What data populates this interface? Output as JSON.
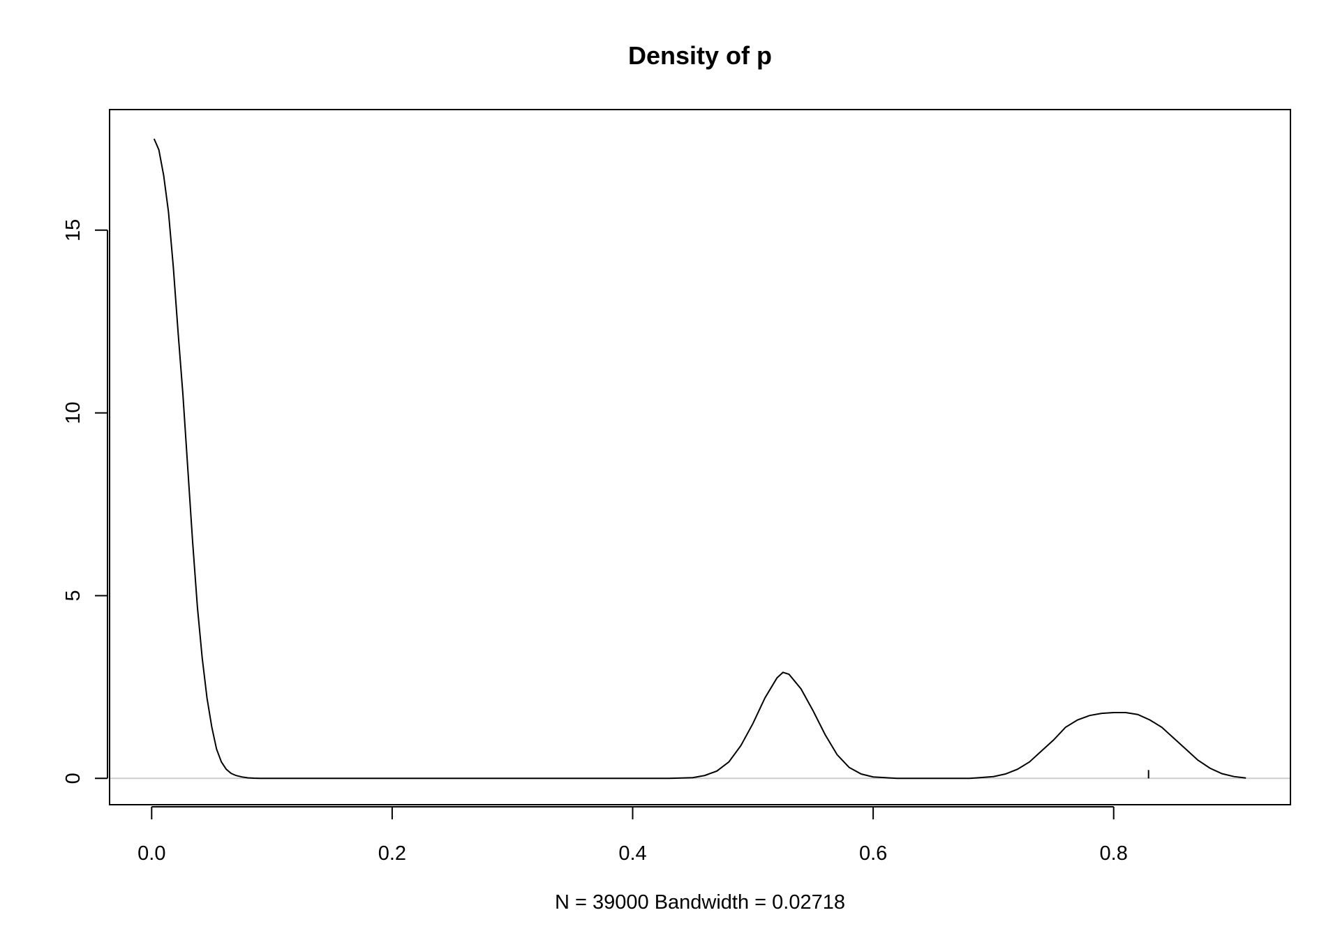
{
  "chart_data": {
    "type": "line",
    "title": "Density of p",
    "xlabel": "N = 39000   Bandwidth = 0.02718",
    "ylabel": "",
    "xlim": [
      -0.035,
      0.947
    ],
    "ylim": [
      -0.72,
      18.3
    ],
    "xticks": [
      0.0,
      0.2,
      0.4,
      0.6,
      0.8
    ],
    "xtick_labels": [
      "0.0",
      "0.2",
      "0.4",
      "0.6",
      "0.8"
    ],
    "yticks": [
      0,
      5,
      10,
      15
    ],
    "ytick_labels": [
      "0",
      "5",
      "10",
      "15"
    ],
    "grid": false,
    "zero_reference_line": true,
    "colors": {
      "line": "#000000",
      "zero_line": "#cccccc",
      "frame": "#000000"
    },
    "series": [
      {
        "x": [
          0.002,
          0.006,
          0.01,
          0.014,
          0.018,
          0.022,
          0.026,
          0.03,
          0.034,
          0.038,
          0.042,
          0.046,
          0.05,
          0.054,
          0.058,
          0.062,
          0.066,
          0.07,
          0.075,
          0.08,
          0.085,
          0.09,
          0.095,
          0.1,
          0.12,
          0.15,
          0.2,
          0.3,
          0.4,
          0.43,
          0.45,
          0.46,
          0.47,
          0.48,
          0.49,
          0.5,
          0.51,
          0.52,
          0.525,
          0.53,
          0.54,
          0.55,
          0.56,
          0.57,
          0.58,
          0.59,
          0.6,
          0.62,
          0.65,
          0.68,
          0.7,
          0.71,
          0.72,
          0.73,
          0.74,
          0.75,
          0.76,
          0.77,
          0.78,
          0.79,
          0.8,
          0.81,
          0.82,
          0.83,
          0.84,
          0.85,
          0.86,
          0.87,
          0.88,
          0.89,
          0.9,
          0.91
        ],
        "y": [
          17.5,
          17.2,
          16.5,
          15.5,
          14.0,
          12.2,
          10.5,
          8.5,
          6.5,
          4.7,
          3.3,
          2.2,
          1.4,
          0.8,
          0.45,
          0.25,
          0.14,
          0.08,
          0.04,
          0.015,
          0.005,
          0.0,
          0.0,
          0.0,
          0.0,
          0.0,
          0.0,
          0.0,
          0.0,
          0.0,
          0.02,
          0.08,
          0.2,
          0.45,
          0.9,
          1.5,
          2.2,
          2.75,
          2.9,
          2.85,
          2.45,
          1.85,
          1.2,
          0.65,
          0.3,
          0.12,
          0.04,
          0.0,
          0.0,
          0.0,
          0.05,
          0.12,
          0.25,
          0.45,
          0.75,
          1.05,
          1.4,
          1.6,
          1.72,
          1.78,
          1.8,
          1.8,
          1.75,
          1.6,
          1.4,
          1.1,
          0.8,
          0.5,
          0.28,
          0.13,
          0.05,
          0.01
        ]
      }
    ],
    "rug_mark_x": 0.829
  }
}
